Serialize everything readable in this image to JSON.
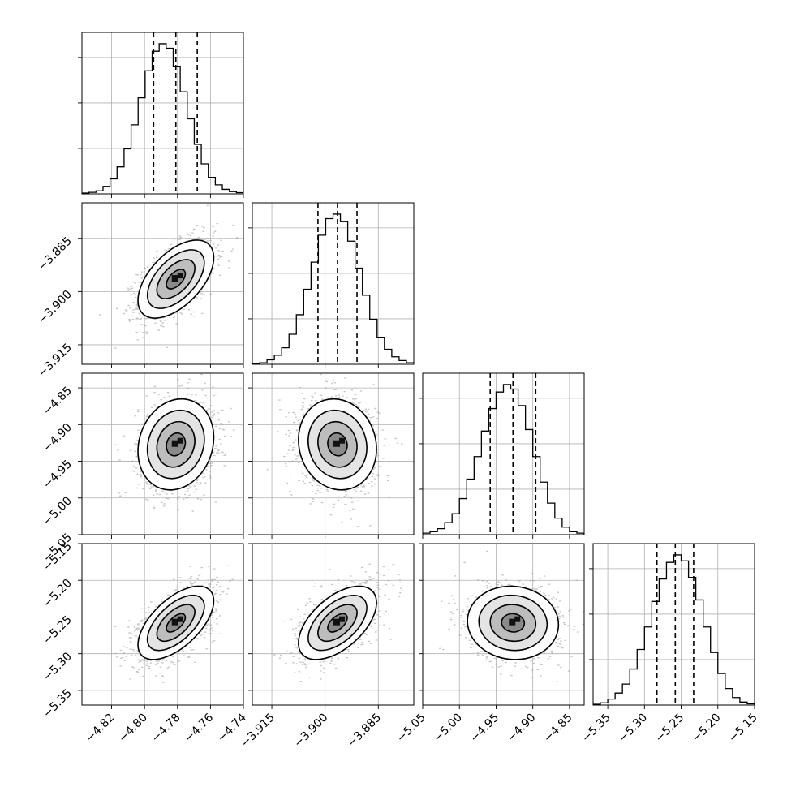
{
  "chart_data": {
    "type": "corner",
    "parameters": [
      {
        "range": [
          -4.838,
          -4.74
        ],
        "ticks": [
          -4.82,
          -4.8,
          -4.78,
          -4.76,
          -4.74
        ],
        "tick_labels": [
          "−4.82",
          "−4.80",
          "−4.78",
          "−4.76",
          "−4.74"
        ],
        "mean": -4.781,
        "sd": 0.0115,
        "quantiles": [
          -4.7945,
          -4.781,
          -4.768
        ],
        "hist": [
          0.005,
          0.01,
          0.02,
          0.05,
          0.1,
          0.18,
          0.3,
          0.46,
          0.64,
          0.82,
          0.95,
          1.0,
          0.97,
          0.85,
          0.68,
          0.5,
          0.33,
          0.2,
          0.11,
          0.06,
          0.03,
          0.015,
          0.008
        ]
      },
      {
        "range": [
          -3.9205,
          -3.875
        ],
        "ticks": [
          -3.915,
          -3.9,
          -3.885
        ],
        "tick_labels": [
          "−3.915",
          "−3.900",
          "−3.885"
        ],
        "mean": -3.8965,
        "sd": 0.0055,
        "quantiles": [
          -3.902,
          -3.8965,
          -3.891
        ],
        "hist": [
          0.005,
          0.01,
          0.03,
          0.06,
          0.11,
          0.2,
          0.33,
          0.5,
          0.68,
          0.86,
          0.97,
          1.0,
          0.95,
          0.82,
          0.64,
          0.46,
          0.3,
          0.18,
          0.1,
          0.05,
          0.025,
          0.01
        ]
      },
      {
        "range": [
          -5.05,
          -4.83
        ],
        "ticks": [
          -5.05,
          -5.0,
          -4.95,
          -4.9,
          -4.85
        ],
        "tick_labels": [
          "−5.05",
          "−5.00",
          "−4.95",
          "−4.90",
          "−4.85"
        ],
        "mean": -4.927,
        "sd": 0.031,
        "quantiles": [
          -4.958,
          -4.927,
          -4.896
        ],
        "hist": [
          0.01,
          0.02,
          0.04,
          0.08,
          0.14,
          0.24,
          0.37,
          0.52,
          0.69,
          0.84,
          0.95,
          1.0,
          0.97,
          0.86,
          0.7,
          0.52,
          0.35,
          0.21,
          0.11,
          0.05,
          0.02,
          0.01
        ]
      },
      {
        "range": [
          -5.37,
          -5.15
        ],
        "ticks": [
          -5.35,
          -5.3,
          -5.25,
          -5.2,
          -5.15
        ],
        "tick_labels": [
          "−5.35",
          "−5.30",
          "−5.25",
          "−5.20",
          "−5.15"
        ],
        "mean": -5.258,
        "sd": 0.025,
        "quantiles": [
          -5.283,
          -5.258,
          -5.233
        ],
        "hist": [
          0.005,
          0.015,
          0.04,
          0.08,
          0.14,
          0.24,
          0.37,
          0.52,
          0.69,
          0.84,
          0.95,
          1.0,
          0.96,
          0.85,
          0.7,
          0.52,
          0.35,
          0.21,
          0.11,
          0.05,
          0.02,
          0.008
        ]
      }
    ],
    "correlations": [
      [
        1.0,
        0.55,
        0.15,
        0.6
      ],
      [
        0.55,
        1.0,
        -0.1,
        0.55
      ],
      [
        0.15,
        -0.1,
        1.0,
        -0.05
      ],
      [
        0.6,
        0.55,
        -0.05,
        1.0
      ]
    ],
    "contour_levels_sigma": [
      0.5,
      1.0,
      1.5,
      2.0
    ],
    "grid": true
  }
}
